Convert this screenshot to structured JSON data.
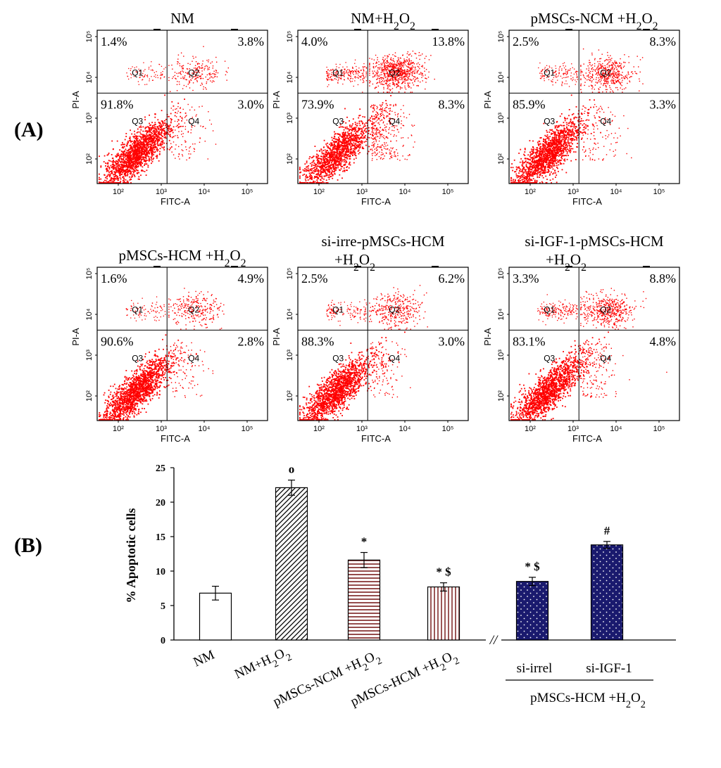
{
  "panel_labels": {
    "a": "(A)",
    "b": "(B)"
  },
  "colors": {
    "dots": "#ff0000",
    "bar_fill_dark": "#1a1a6e",
    "axis": "#000000"
  },
  "chart_data": [
    {
      "type": "scatter",
      "kind": "flow-cytometry-quadrants",
      "xlabel": "FITC-A",
      "ylabel": "PI-A",
      "x_tick_labels": [
        "10²",
        "10³",
        "10⁴",
        "10⁵"
      ],
      "y_tick_labels": [
        "10²",
        "10³",
        "10⁴",
        "10⁵"
      ],
      "quadrant_labels": [
        "Q1",
        "Q2",
        "Q3",
        "Q4"
      ],
      "plots": [
        {
          "title": "NM",
          "title_lines": [
            "NM"
          ],
          "q1": "1.4%",
          "q2": "3.8%",
          "q3": "91.8%",
          "q4": "3.0%"
        },
        {
          "title": "NM+H2O2",
          "title_lines": [
            "NM+H2O2"
          ],
          "q1": "4.0%",
          "q2": "13.8%",
          "q3": "73.9%",
          "q4": "8.3%"
        },
        {
          "title": "pMSCs-NCM +H2O2",
          "title_lines": [
            "pMSCs-NCM +H2O2"
          ],
          "q1": "2.5%",
          "q2": "8.3%",
          "q3": "85.9%",
          "q4": "3.3%"
        },
        {
          "title": "pMSCs-HCM +H2O2",
          "title_lines": [
            "pMSCs-HCM +H2O2"
          ],
          "q1": "1.6%",
          "q2": "4.9%",
          "q3": "90.6%",
          "q4": "2.8%"
        },
        {
          "title": "si-irre-pMSCs-HCM +H2O2",
          "title_lines": [
            "si-irre-pMSCs-HCM",
            "+H2O2"
          ],
          "q1": "2.5%",
          "q2": "6.2%",
          "q3": "88.3%",
          "q4": "3.0%"
        },
        {
          "title": "si-IGF-1-pMSCs-HCM +H2O2",
          "title_lines": [
            "si-IGF-1-pMSCs-HCM",
            "+H2O2"
          ],
          "q1": "3.3%",
          "q2": "8.8%",
          "q3": "83.1%",
          "q4": "4.8%"
        }
      ]
    },
    {
      "type": "bar",
      "title": "",
      "ylabel": "% Apoptotic cells",
      "ylim": [
        0,
        25
      ],
      "yticks": [
        0,
        5,
        10,
        15,
        20,
        25
      ],
      "categories": [
        "NM",
        "NM+H2O2",
        "pMSCs-NCM +H2O2",
        "pMSCs-HCM +H2O2",
        "si-irrel",
        "si-IGF-1"
      ],
      "values": [
        6.8,
        22.1,
        11.6,
        7.7,
        8.5,
        13.8
      ],
      "errors": [
        1.0,
        1.1,
        1.1,
        0.6,
        0.6,
        0.5
      ],
      "significance": [
        "",
        "o",
        "*",
        "* $",
        "* $",
        "#"
      ],
      "patterns": [
        "white",
        "diagonal",
        "horizontal",
        "vertical",
        "dots",
        "dots"
      ],
      "group_label": "pMSCs-HCM +H2O2",
      "axis_break": "//"
    }
  ]
}
